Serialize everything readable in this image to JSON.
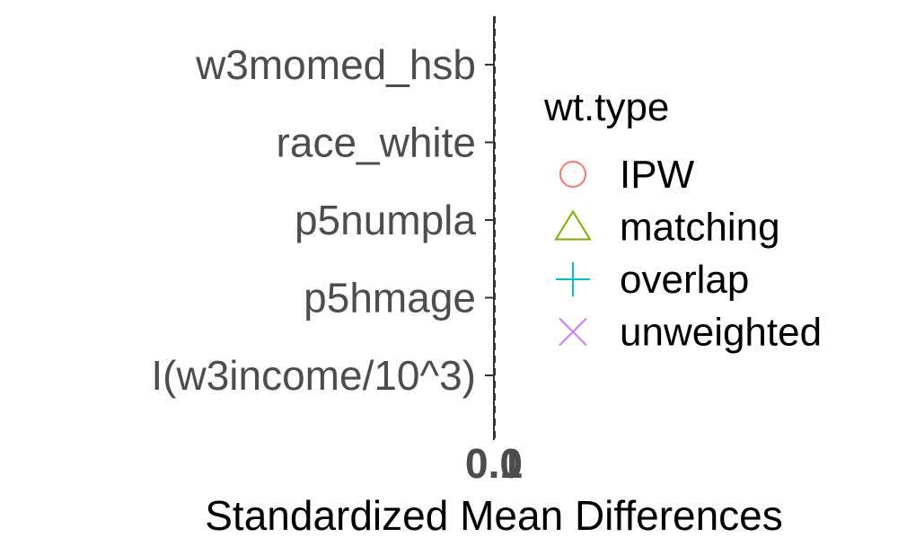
{
  "chart_data": {
    "type": "scatter",
    "title": "",
    "xlabel": "Standardized Mean Differences",
    "ylabel": "",
    "categories": [
      "w3momed_hsb",
      "race_white",
      "p5numpla",
      "p5hmage",
      "I(w3income/10^3)"
    ],
    "x_tick_labels": [
      "0.0",
      "0.1"
    ],
    "reference_line": 0,
    "series": [],
    "legend": {
      "title": "wt.type",
      "placement": "right",
      "entries": [
        {
          "label": "IPW",
          "shape": "circle",
          "color": "#F8766D"
        },
        {
          "label": "matching",
          "shape": "triangle",
          "color": "#7CAE00"
        },
        {
          "label": "overlap",
          "shape": "plus",
          "color": "#00BFC4"
        },
        {
          "label": "unweighted",
          "shape": "cross",
          "color": "#C77CFF"
        }
      ]
    }
  }
}
